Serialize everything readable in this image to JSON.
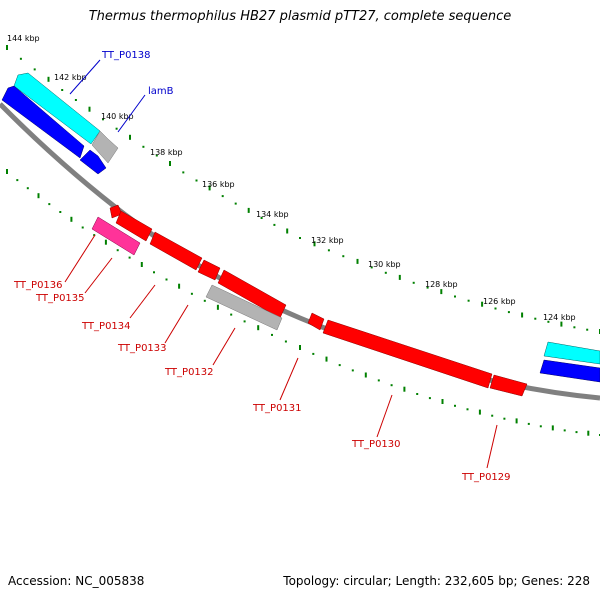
{
  "title": "Thermus thermophilus HB27 plasmid pTT27, complete sequence",
  "accession": "Accession: NC_005838",
  "summary": "Topology: circular; Length: 232,605 bp; Genes: 228",
  "colors": {
    "backbone": "#808080",
    "forward_gene": "#0000ff",
    "forward_highlight": "#00ffff",
    "reverse_gene": "#ff0000",
    "reverse_highlight": "#ff3399",
    "pseudo_gene": "#b3b3b3",
    "tick": "#008000",
    "forward_label": "#0000cc",
    "reverse_label": "#cc0000"
  },
  "scale_labels": [
    "144 kbp",
    "142 kbp",
    "140 kbp",
    "138 kbp",
    "136 kbp",
    "134 kbp",
    "132 kbp",
    "130 kbp",
    "128 kbp",
    "126 kbp",
    "124 kbp"
  ],
  "forward_labels": [
    "TT_P0138",
    "lamB"
  ],
  "reverse_labels": [
    "TT_P0136",
    "TT_P0135",
    "TT_P0134",
    "TT_P0133",
    "TT_P0132",
    "TT_P0131",
    "TT_P0130",
    "TT_P0129"
  ]
}
